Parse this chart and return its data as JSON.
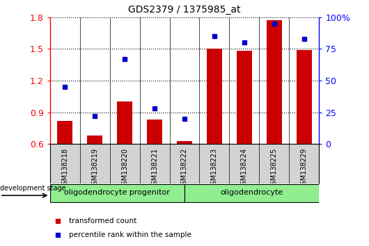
{
  "title": "GDS2379 / 1375985_at",
  "samples": [
    "GSM138218",
    "GSM138219",
    "GSM138220",
    "GSM138221",
    "GSM138222",
    "GSM138223",
    "GSM138224",
    "GSM138225",
    "GSM138229"
  ],
  "transformed_count": [
    0.82,
    0.68,
    1.0,
    0.83,
    0.63,
    1.5,
    1.48,
    1.77,
    1.49
  ],
  "percentile_rank": [
    45,
    22,
    67,
    28,
    20,
    85,
    80,
    95,
    83
  ],
  "bar_color": "#cc0000",
  "dot_color": "#0000cc",
  "ylim_left": [
    0.6,
    1.8
  ],
  "ylim_right": [
    0,
    100
  ],
  "yticks_left": [
    0.6,
    0.9,
    1.2,
    1.5,
    1.8
  ],
  "yticks_right": [
    0,
    25,
    50,
    75,
    100
  ],
  "ytick_labels_right": [
    "0",
    "25",
    "50",
    "75",
    "100%"
  ],
  "group_boundary": 4.5,
  "group1_label": "oligodendrocyte progenitor",
  "group2_label": "oligodendrocyte",
  "group_color": "#90ee90",
  "legend_bar_label": "transformed count",
  "legend_dot_label": "percentile rank within the sample",
  "dev_stage_label": "development stage",
  "bar_width": 0.5,
  "tick_area_color": "#d3d3d3",
  "title_fontsize": 10,
  "tick_fontsize": 7,
  "label_fontsize": 8
}
